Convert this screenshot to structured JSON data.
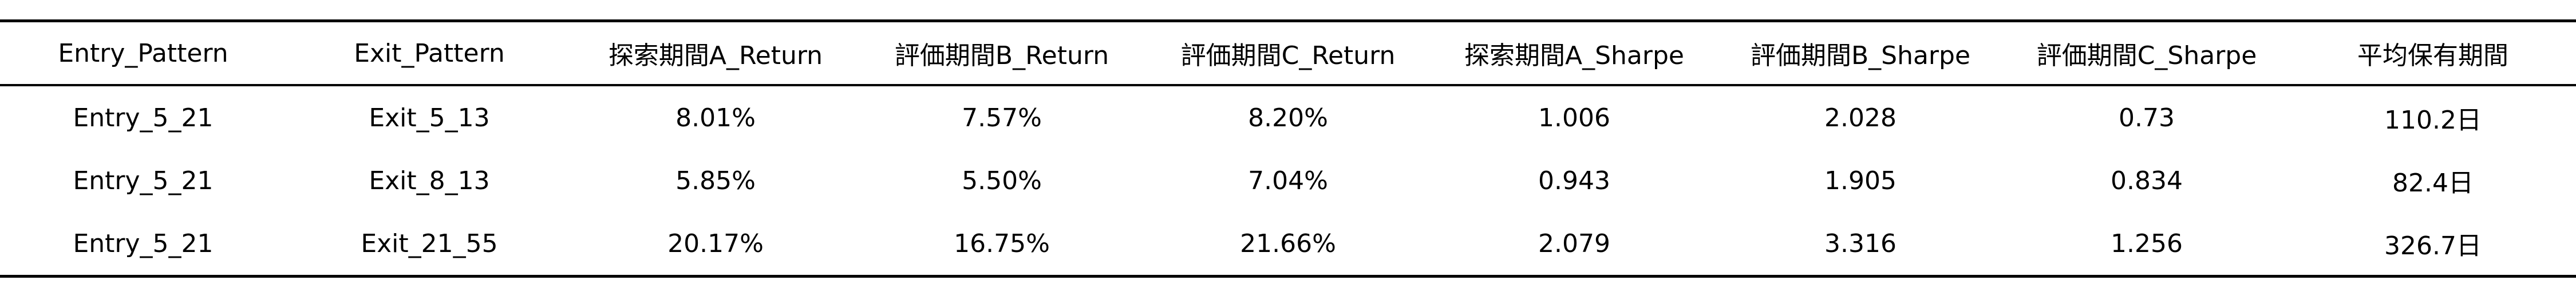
{
  "table": {
    "headers": [
      "Entry_Pattern",
      "Exit_Pattern",
      "探索期間A_Return",
      "評価期間B_Return",
      "評価期間C_Return",
      "探索期間A_Sharpe",
      "評価期間B_Sharpe",
      "評価期間C_Sharpe",
      "平均保有期間"
    ],
    "rows": [
      [
        "Entry_5_21",
        "Exit_5_13",
        "8.01%",
        "7.57%",
        "8.20%",
        "1.006",
        "2.028",
        "0.73",
        "110.2日"
      ],
      [
        "Entry_5_21",
        "Exit_8_13",
        "5.85%",
        "5.50%",
        "7.04%",
        "0.943",
        "1.905",
        "0.834",
        "82.4日"
      ],
      [
        "Entry_5_21",
        "Exit_21_55",
        "20.17%",
        "16.75%",
        "21.66%",
        "2.079",
        "3.316",
        "1.256",
        "326.7日"
      ]
    ]
  }
}
